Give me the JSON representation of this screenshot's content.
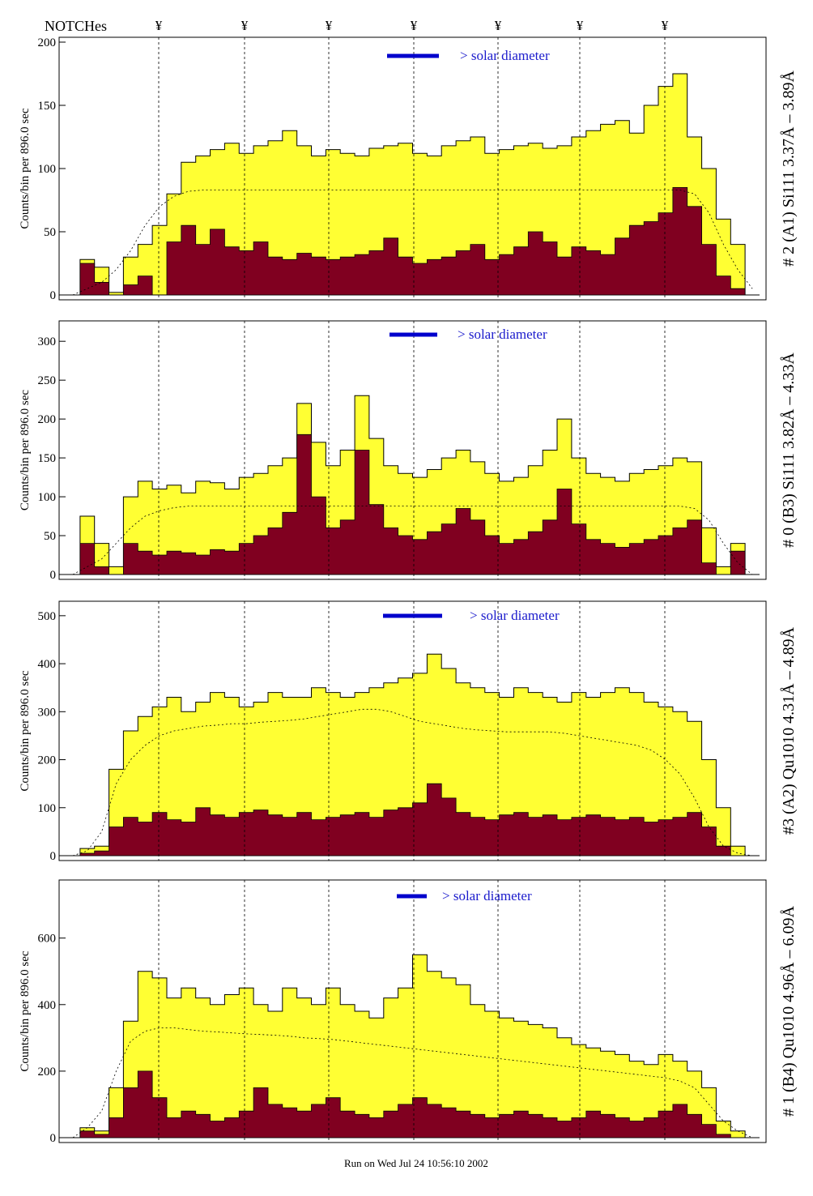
{
  "header": {
    "notches_label": "NOTCHes",
    "notch_symbol": "¥"
  },
  "footer": {
    "run_text": "Run on Wed Jul 24 10:56:10 2002"
  },
  "colors": {
    "total": "#ffff33",
    "core": "#800020",
    "solar_bar": "#0000cc",
    "solar_text": "#1a1acc"
  },
  "chart_data": [
    {
      "type": "area",
      "id": "p1",
      "right_label": "# 2 (A1) Si111  3.37Å – 3.89Å",
      "ylabel": "Counts/bin per    896.0 sec",
      "ylim": [
        0,
        200
      ],
      "yticks": [
        "0",
        "50",
        "100",
        "150",
        "200"
      ],
      "annotation": "> solar diameter",
      "series": [
        {
          "name": "",
          "values": [
            0,
            28,
            22,
            2,
            30,
            40,
            55,
            80,
            105,
            110,
            115,
            120,
            112,
            118,
            122,
            130,
            118,
            110,
            115,
            112,
            110,
            116,
            118,
            120,
            112,
            110,
            118,
            122,
            125,
            112,
            115,
            118,
            120,
            116,
            118,
            125,
            130,
            135,
            138,
            128,
            150,
            165,
            175,
            125,
            100,
            60,
            40,
            0
          ]
        },
        {
          "name": "",
          "values": [
            0,
            25,
            10,
            0,
            8,
            15,
            0,
            42,
            55,
            40,
            52,
            38,
            35,
            42,
            30,
            28,
            33,
            30,
            28,
            30,
            32,
            35,
            45,
            30,
            25,
            28,
            30,
            35,
            40,
            28,
            32,
            38,
            50,
            42,
            30,
            38,
            35,
            32,
            45,
            55,
            58,
            65,
            85,
            70,
            40,
            15,
            5,
            0
          ]
        },
        {
          "name": "",
          "values": [
            0,
            5,
            10,
            20,
            35,
            55,
            70,
            78,
            82,
            83,
            83,
            83,
            83,
            83,
            83,
            83,
            83,
            83,
            83,
            83,
            83,
            83,
            83,
            83,
            83,
            83,
            83,
            83,
            83,
            83,
            83,
            83,
            83,
            83,
            83,
            83,
            83,
            83,
            83,
            83,
            83,
            83,
            83,
            80,
            65,
            40,
            20,
            5
          ]
        }
      ]
    },
    {
      "type": "area",
      "id": "p2",
      "right_label": "# 0 (B3) Si111  3.82Å – 4.33Å",
      "ylabel": "Counts/bin per    896.0 sec",
      "ylim": [
        0,
        320
      ],
      "yticks": [
        "0",
        "50",
        "100",
        "150",
        "200",
        "250",
        "300"
      ],
      "annotation": "> solar diameter",
      "series": [
        {
          "name": "",
          "values": [
            0,
            75,
            40,
            10,
            100,
            120,
            110,
            115,
            105,
            120,
            118,
            110,
            125,
            130,
            140,
            150,
            220,
            170,
            140,
            160,
            230,
            175,
            140,
            130,
            125,
            135,
            150,
            160,
            145,
            130,
            120,
            125,
            140,
            160,
            200,
            150,
            130,
            125,
            120,
            130,
            135,
            140,
            150,
            145,
            60,
            10,
            40,
            0
          ]
        },
        {
          "name": "",
          "values": [
            0,
            40,
            10,
            0,
            40,
            30,
            25,
            30,
            28,
            25,
            32,
            30,
            40,
            50,
            60,
            80,
            180,
            100,
            60,
            70,
            160,
            90,
            60,
            50,
            45,
            55,
            65,
            85,
            70,
            50,
            40,
            45,
            55,
            70,
            110,
            65,
            45,
            40,
            35,
            40,
            45,
            50,
            60,
            70,
            15,
            0,
            30,
            0
          ]
        },
        {
          "name": "",
          "values": [
            0,
            10,
            20,
            40,
            60,
            75,
            82,
            86,
            88,
            88,
            88,
            88,
            88,
            88,
            88,
            88,
            88,
            88,
            88,
            88,
            88,
            88,
            88,
            88,
            88,
            88,
            88,
            88,
            88,
            88,
            88,
            88,
            88,
            88,
            88,
            88,
            88,
            88,
            88,
            88,
            88,
            88,
            88,
            85,
            70,
            40,
            15,
            0
          ]
        }
      ]
    },
    {
      "type": "area",
      "id": "p3",
      "right_label": "#3 (A2) Qu1010  4.31Å – 4.89Å",
      "ylabel": "Counts/bin per    896.0 sec",
      "ylim": [
        0,
        520
      ],
      "yticks": [
        "0",
        "100",
        "200",
        "300",
        "400",
        "500"
      ],
      "annotation": "> solar diameter",
      "series": [
        {
          "name": "",
          "values": [
            0,
            15,
            20,
            180,
            260,
            290,
            310,
            330,
            300,
            320,
            340,
            330,
            310,
            320,
            340,
            330,
            330,
            350,
            340,
            330,
            340,
            350,
            360,
            370,
            380,
            420,
            390,
            360,
            350,
            340,
            330,
            350,
            340,
            330,
            320,
            340,
            330,
            340,
            350,
            340,
            320,
            310,
            300,
            280,
            200,
            100,
            20,
            0
          ]
        },
        {
          "name": "",
          "values": [
            0,
            5,
            10,
            60,
            80,
            70,
            90,
            75,
            70,
            100,
            85,
            80,
            90,
            95,
            85,
            80,
            90,
            75,
            80,
            85,
            90,
            80,
            95,
            100,
            110,
            150,
            120,
            90,
            80,
            75,
            85,
            90,
            80,
            85,
            75,
            80,
            85,
            80,
            75,
            80,
            70,
            75,
            80,
            90,
            60,
            20,
            0,
            0
          ]
        },
        {
          "name": "",
          "values": [
            0,
            10,
            50,
            150,
            200,
            230,
            250,
            260,
            265,
            270,
            272,
            275,
            275,
            278,
            280,
            282,
            285,
            290,
            295,
            300,
            305,
            305,
            300,
            290,
            280,
            275,
            270,
            265,
            262,
            260,
            258,
            258,
            258,
            258,
            255,
            250,
            245,
            240,
            235,
            230,
            220,
            200,
            170,
            120,
            60,
            20,
            5,
            0
          ]
        }
      ]
    },
    {
      "type": "area",
      "id": "p4",
      "right_label": "# 1 (B4) Qu1010 4.96Å – 6.09Å",
      "ylabel": "Counts/bin per    896.0 sec",
      "ylim": [
        0,
        760
      ],
      "yticks": [
        "0",
        "200",
        "400",
        "600"
      ],
      "annotation": "> solar diameter",
      "series": [
        {
          "name": "",
          "values": [
            0,
            30,
            20,
            150,
            350,
            500,
            480,
            420,
            450,
            420,
            400,
            430,
            450,
            400,
            380,
            450,
            420,
            400,
            450,
            400,
            380,
            360,
            420,
            450,
            550,
            500,
            480,
            460,
            400,
            380,
            360,
            350,
            340,
            330,
            300,
            280,
            270,
            260,
            250,
            230,
            220,
            250,
            230,
            200,
            150,
            50,
            20,
            0
          ]
        },
        {
          "name": "",
          "values": [
            0,
            20,
            10,
            60,
            150,
            200,
            120,
            60,
            80,
            70,
            50,
            60,
            80,
            150,
            100,
            90,
            80,
            100,
            120,
            80,
            70,
            60,
            80,
            100,
            120,
            100,
            90,
            80,
            70,
            60,
            70,
            80,
            70,
            60,
            50,
            60,
            80,
            70,
            60,
            50,
            60,
            80,
            100,
            70,
            40,
            10,
            0,
            0
          ]
        },
        {
          "name": "",
          "values": [
            0,
            30,
            80,
            200,
            290,
            320,
            330,
            330,
            325,
            320,
            318,
            315,
            312,
            310,
            308,
            305,
            300,
            298,
            295,
            290,
            285,
            280,
            275,
            270,
            265,
            260,
            255,
            250,
            245,
            240,
            235,
            230,
            225,
            220,
            215,
            210,
            205,
            200,
            195,
            190,
            185,
            180,
            170,
            150,
            100,
            50,
            20,
            0
          ]
        }
      ]
    }
  ]
}
